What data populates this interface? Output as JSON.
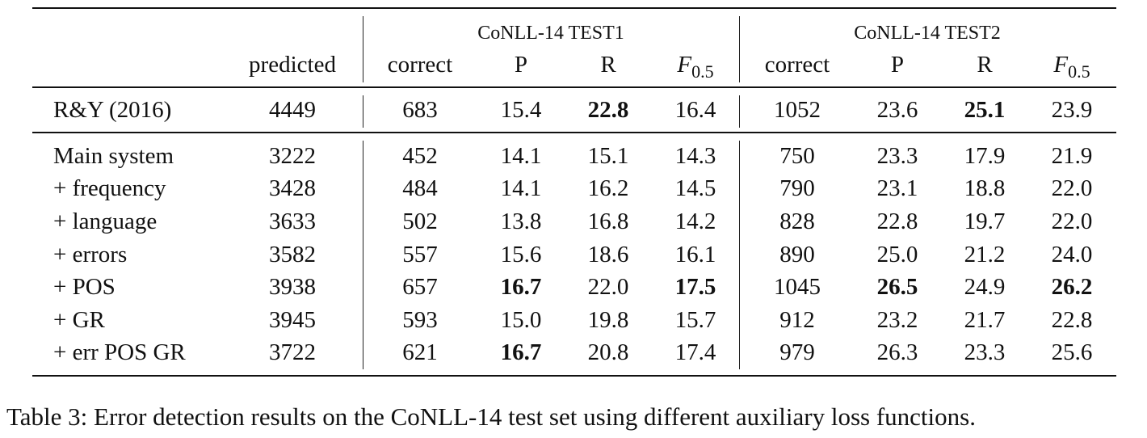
{
  "table": {
    "groups": {
      "test1": "CoNLL-14 TEST1",
      "test2": "CoNLL-14 TEST2"
    },
    "headers": {
      "predicted": "predicted",
      "test1_correct": "correct",
      "test1_p": "P",
      "test1_r": "R",
      "test1_f_var": "F",
      "test1_f_sub": "0.5",
      "test2_correct": "correct",
      "test2_p": "P",
      "test2_r": "R",
      "test2_f_var": "F",
      "test2_f_sub": "0.5"
    },
    "baseline": {
      "name": "R&Y (2016)",
      "cells": [
        "4449",
        "683",
        "15.4",
        "22.8",
        "16.4",
        "1052",
        "23.6",
        "25.1",
        "23.9"
      ],
      "bold": [
        3,
        7
      ]
    },
    "rows": [
      {
        "name": "Main system",
        "cells": [
          "3222",
          "452",
          "14.1",
          "15.1",
          "14.3",
          "750",
          "23.3",
          "17.9",
          "21.9"
        ],
        "bold": []
      },
      {
        "name": "+ frequency",
        "cells": [
          "3428",
          "484",
          "14.1",
          "16.2",
          "14.5",
          "790",
          "23.1",
          "18.8",
          "22.0"
        ],
        "bold": []
      },
      {
        "name": "+ language",
        "cells": [
          "3633",
          "502",
          "13.8",
          "16.8",
          "14.2",
          "828",
          "22.8",
          "19.7",
          "22.0"
        ],
        "bold": []
      },
      {
        "name": "+ errors",
        "cells": [
          "3582",
          "557",
          "15.6",
          "18.6",
          "16.1",
          "890",
          "25.0",
          "21.2",
          "24.0"
        ],
        "bold": []
      },
      {
        "name": "+ POS",
        "cells": [
          "3938",
          "657",
          "16.7",
          "22.0",
          "17.5",
          "1045",
          "26.5",
          "24.9",
          "26.2"
        ],
        "bold": [
          2,
          4,
          6,
          8
        ]
      },
      {
        "name": "+ GR",
        "cells": [
          "3945",
          "593",
          "15.0",
          "19.8",
          "15.7",
          "912",
          "23.2",
          "21.7",
          "22.8"
        ],
        "bold": []
      },
      {
        "name": "+ err POS GR",
        "cells": [
          "3722",
          "621",
          "16.7",
          "20.8",
          "17.4",
          "979",
          "26.3",
          "23.3",
          "25.6"
        ],
        "bold": [
          2
        ]
      }
    ]
  },
  "caption": "Table 3: Error detection results on the CoNLL-14 test set using different auxiliary loss functions."
}
